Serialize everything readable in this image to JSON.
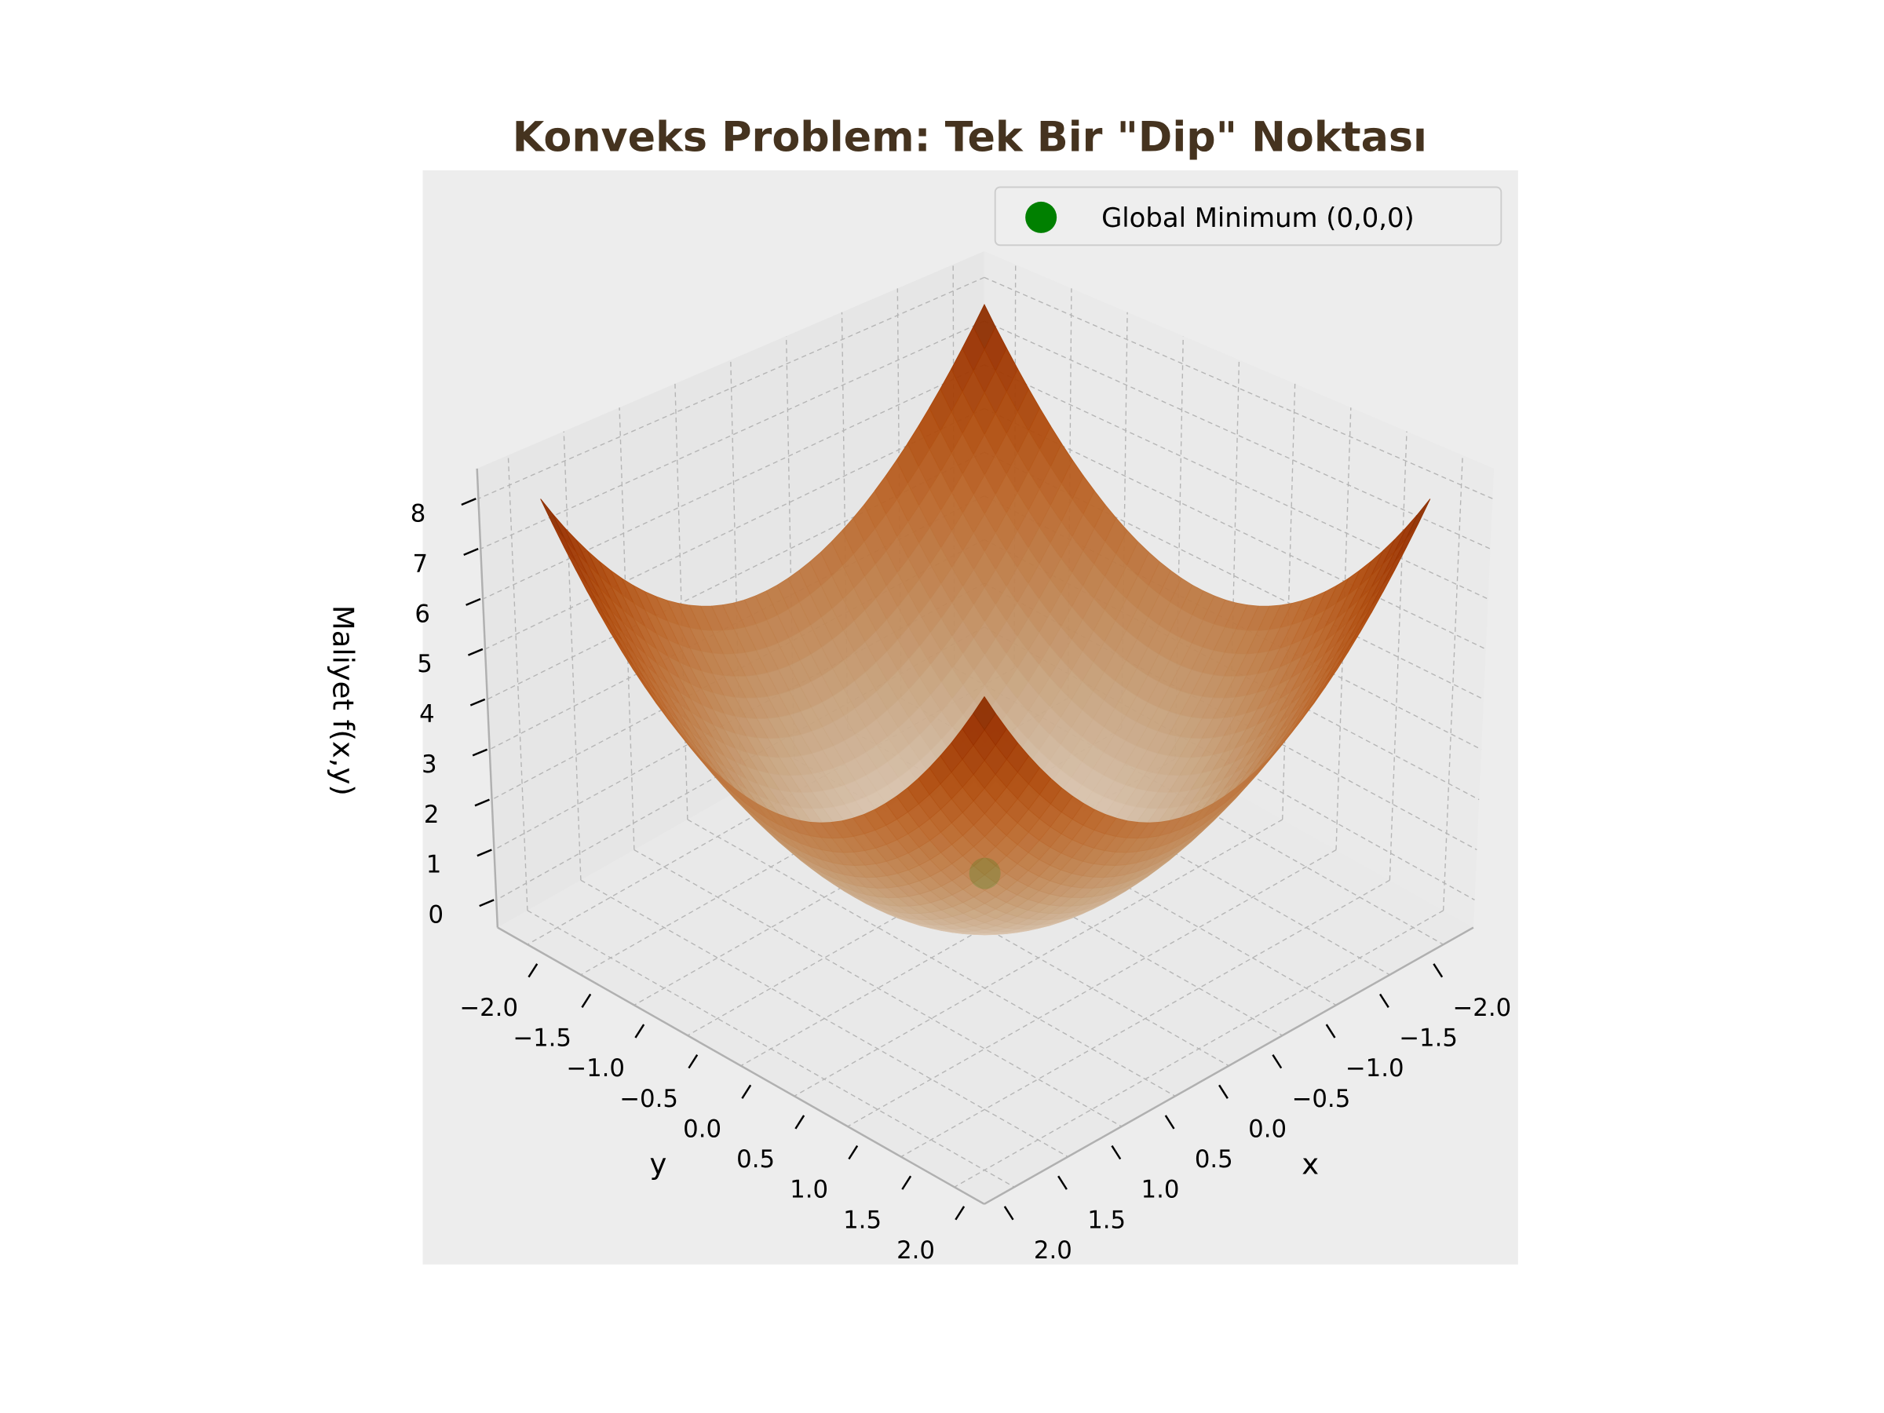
{
  "title": "Konveks Problem: Tek Bir \"Dip\" Noktası",
  "title_color": "#45331f",
  "legend": {
    "label": "Global Minimum (0,0,0)",
    "marker_color": "#008000",
    "placement": "top-right"
  },
  "chart_data": {
    "type": "surface",
    "title": "Konveks Problem: Tek Bir \"Dip\" Noktası",
    "xlabel": "x",
    "ylabel": "y",
    "zlabel": "Maliyet f(x,y)",
    "surface": {
      "x_range": [
        -2,
        2
      ],
      "y_range": [
        -2,
        2
      ],
      "z": "x^2 + y^2",
      "colormap": "Oranges"
    },
    "points": [
      {
        "name": "Global Minimum (0,0,0)",
        "x": 0,
        "y": 0,
        "z": 0,
        "color": "#008000"
      }
    ],
    "xlim": [
      -2.28,
      2.28
    ],
    "ylim": [
      -2.28,
      2.28
    ],
    "zlim": [
      -0.55,
      8.6
    ],
    "xticks": [
      -2.0,
      -1.5,
      -1.0,
      -0.5,
      0.0,
      0.5,
      1.0,
      1.5,
      2.0
    ],
    "xtick_labels": [
      "−2.0",
      "−1.5",
      "−1.0",
      "−0.5",
      "0.0",
      "0.5",
      "1.0",
      "1.5",
      "2.0"
    ],
    "yticks": [
      -2.0,
      -1.5,
      -1.0,
      -0.5,
      0.0,
      0.5,
      1.0,
      1.5,
      2.0
    ],
    "ytick_labels": [
      "−2.0",
      "−1.5",
      "−1.0",
      "−0.5",
      "0.0",
      "0.5",
      "1.0",
      "1.5",
      "2.0"
    ],
    "zticks": [
      0,
      1,
      2,
      3,
      4,
      5,
      6,
      7,
      8
    ],
    "ztick_labels": [
      "0",
      "1",
      "2",
      "3",
      "4",
      "5",
      "6",
      "7",
      "8"
    ],
    "grid": true,
    "legend_placement": "top-right"
  }
}
